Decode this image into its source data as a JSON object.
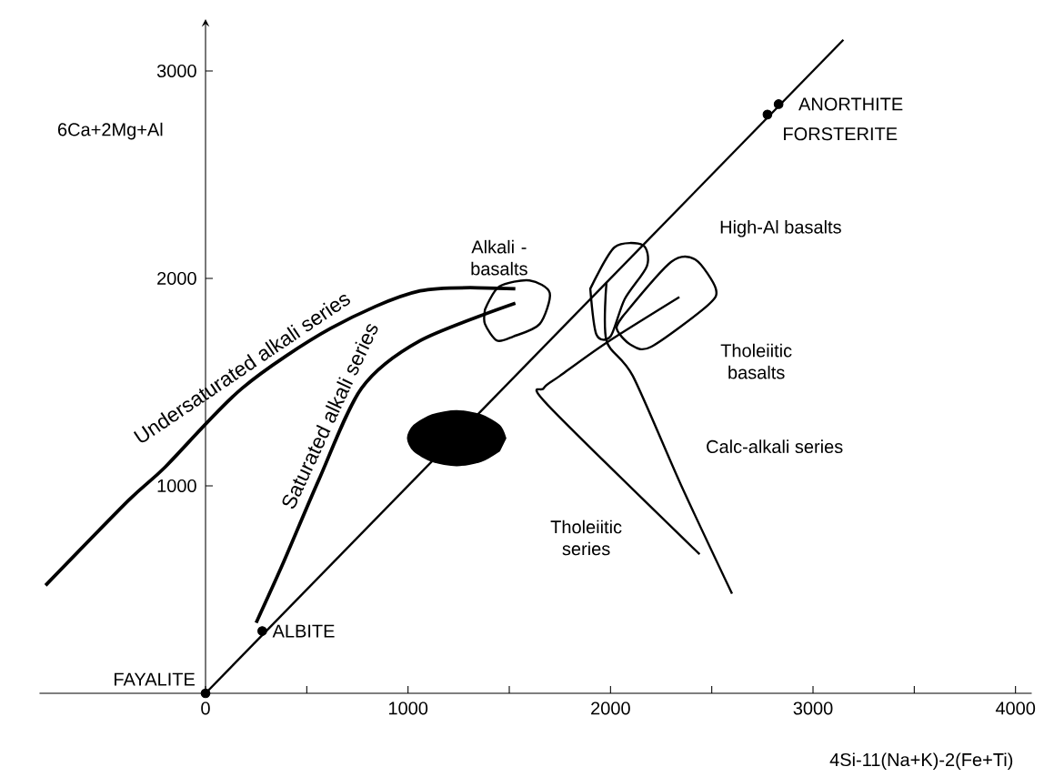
{
  "chart_data": {
    "type": "line",
    "xlabel": "4Si-11(Na+K)-2(Fe+Ti)",
    "ylabel": "6Ca+2Mg+Al",
    "xlim": [
      -820,
      4080
    ],
    "ylim": [
      0,
      3250
    ],
    "xticks": [
      0,
      {
        "value": 500,
        "label": null
      },
      1000,
      {
        "value": 1500,
        "label": null
      },
      2000,
      {
        "value": 2500,
        "label": null
      },
      3000,
      {
        "value": 3500,
        "label": null
      },
      4000
    ],
    "yticks": [
      1000,
      2000,
      3000
    ],
    "grid": false,
    "series": [
      {
        "type": "area",
        "color": "#ffffff",
        "x": [
          1380,
          1450,
          1600,
          1700,
          1650,
          1520,
          1440,
          1380,
          1380
        ],
        "values": [
          1850,
          1960,
          1990,
          1930,
          1780,
          1720,
          1700,
          1780,
          1850
        ]
      },
      {
        "type": "area",
        "color": "#ffffff",
        "x": [
          1900,
          2020,
          2160,
          2180,
          2070,
          2000,
          1930,
          1900
        ],
        "values": [
          1950,
          2150,
          2160,
          2060,
          1900,
          1720,
          1730,
          1950
        ]
      },
      {
        "type": "area",
        "color": "#ffffff",
        "x": [
          2080,
          2300,
          2420,
          2520,
          2480,
          2200,
          2100,
          2030,
          2080
        ],
        "values": [
          1840,
          2080,
          2090,
          1950,
          1870,
          1670,
          1680,
          1760,
          1840
        ]
      },
      {
        "type": "area",
        "color": "#000000",
        "x": [
          1480,
          1450,
          1360,
          1240,
          1120,
          1030,
          1000,
          1030,
          1120,
          1240,
          1360,
          1450
        ],
        "values": [
          1230,
          1290,
          1340,
          1360,
          1340,
          1290,
          1230,
          1170,
          1120,
          1100,
          1120,
          1170
        ]
      },
      {
        "name": "Undersaturated alkali series",
        "color": "#000000",
        "x": [
          -790,
          -380,
          -200,
          180,
          620,
          1060,
          1530
        ],
        "values": [
          520,
          930,
          1090,
          1470,
          1760,
          1940,
          1950
        ]
      },
      {
        "name": "Saturated alkali series",
        "color": "#000000",
        "x": [
          250,
          380,
          560,
          770,
          1060,
          1530
        ],
        "values": [
          340,
          620,
          1030,
          1470,
          1700,
          1880
        ]
      },
      {
        "color": "#000000",
        "x": [
          0,
          3150
        ],
        "values": [
          0,
          3150
        ]
      },
      {
        "color": "#000000",
        "x": [
          2440,
          1690,
          1670,
          1750,
          1980,
          2340
        ],
        "values": [
          670,
          1390,
          1470,
          1530,
          1690,
          1910
        ]
      },
      {
        "color": "#000000",
        "x": [
          2600,
          2350,
          2110,
          1980,
          1980
        ],
        "values": [
          480,
          1000,
          1530,
          1700,
          1980
        ]
      },
      {
        "type": "scatter",
        "marker": "circle",
        "color": "#000000",
        "x": [
          0,
          280,
          2775,
          2830
        ],
        "values": [
          0,
          300,
          2790,
          2840
        ]
      }
    ],
    "annotations": [
      {
        "text": "FAYALITE",
        "x": 0,
        "y": 0
      },
      {
        "text": "ALBITE",
        "x": 280,
        "y": 300
      },
      {
        "text": "ANORTHITE",
        "x": 2830,
        "y": 2840
      },
      {
        "text": "FORSTERITE",
        "x": 2775,
        "y": 2790
      },
      "Alkali - basalts",
      "High-Al basalts",
      "Tholeiitic basalts",
      "Calc-alkali series",
      "Tholeiitic series"
    ]
  }
}
